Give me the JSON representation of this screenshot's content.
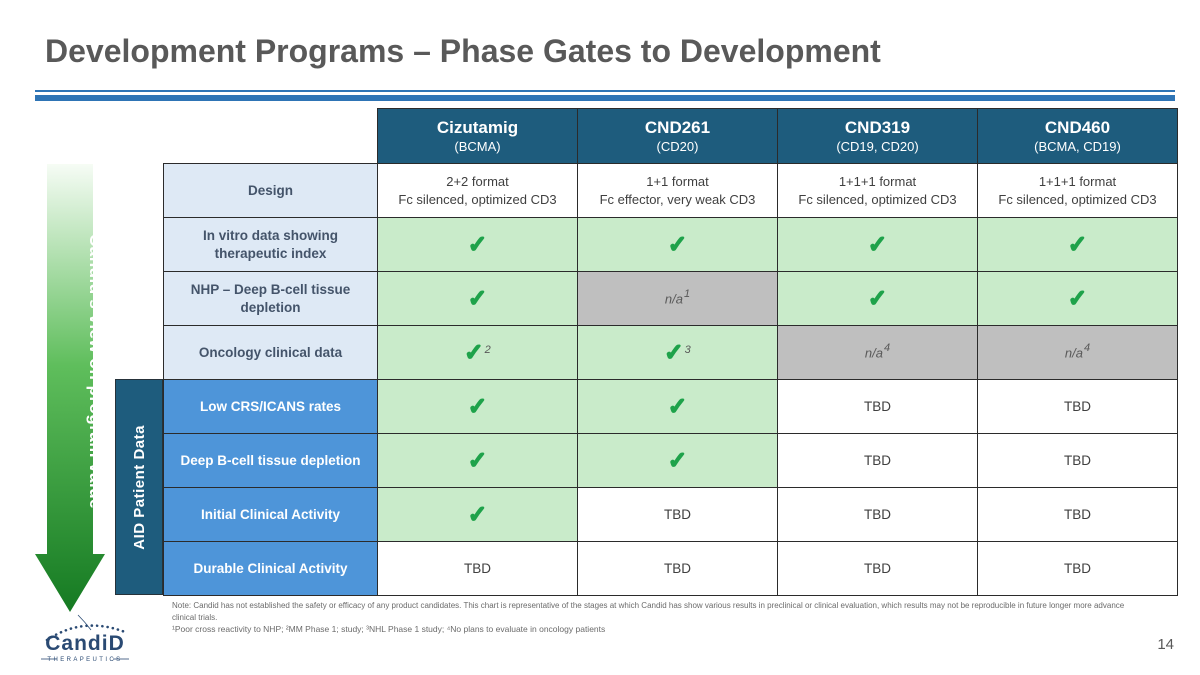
{
  "slide": {
    "title": "Development Programs – Phase Gates to Development",
    "page_number": "14"
  },
  "colors": {
    "accent_rule_blue": "#2E74B5",
    "header_teal": "#1E5C7D",
    "row_label_blue": "#4E95D9",
    "row_label_light_blue": "#DEE9F5",
    "green_cell": "#C9EBCA",
    "gray_cell": "#BFBFBF",
    "check_green": "#1EA24A",
    "arrow_gradient_top": "#F4FBF3",
    "arrow_gradient_bottom": "#157A22",
    "logo_navy": "#2A4A73"
  },
  "left_arrow": {
    "label": "Candid’s view on program value"
  },
  "aid_bar": {
    "label": "AID Patient Data"
  },
  "table": {
    "check_glyph": "✓",
    "na_label": "n/a",
    "tbd_label": "TBD",
    "columns": [
      {
        "name": "Cizutamig",
        "sub": "(BCMA)"
      },
      {
        "name": "CND261",
        "sub": "(CD20)"
      },
      {
        "name": "CND319",
        "sub": "(CD19, CD20)"
      },
      {
        "name": "CND460",
        "sub": "(BCMA, CD19)"
      }
    ],
    "rows": [
      {
        "label": "Design",
        "label_style": "light",
        "cells": [
          {
            "type": "text2",
            "line1": "2+2 format",
            "line2": "Fc silenced, optimized CD3"
          },
          {
            "type": "text2",
            "line1": "1+1 format",
            "line2": "Fc effector, very weak CD3"
          },
          {
            "type": "text2",
            "line1": "1+1+1 format",
            "line2": "Fc silenced, optimized CD3"
          },
          {
            "type": "text2",
            "line1": "1+1+1 format",
            "line2": "Fc silenced, optimized CD3"
          }
        ]
      },
      {
        "label": "In vitro data showing therapeutic index",
        "label_style": "light",
        "cells": [
          {
            "type": "check"
          },
          {
            "type": "check"
          },
          {
            "type": "check"
          },
          {
            "type": "check"
          }
        ]
      },
      {
        "label": "NHP – Deep B-cell tissue depletion",
        "label_style": "light",
        "cells": [
          {
            "type": "check"
          },
          {
            "type": "na",
            "sup": "1"
          },
          {
            "type": "check"
          },
          {
            "type": "check"
          }
        ]
      },
      {
        "label": "Oncology clinical data",
        "label_style": "light",
        "cells": [
          {
            "type": "check",
            "sup": "2"
          },
          {
            "type": "check",
            "sup": "3"
          },
          {
            "type": "na",
            "sup": "4"
          },
          {
            "type": "na",
            "sup": "4"
          }
        ]
      },
      {
        "label": "Low CRS/ICANS rates",
        "label_style": "blue",
        "cells": [
          {
            "type": "check"
          },
          {
            "type": "check"
          },
          {
            "type": "tbd"
          },
          {
            "type": "tbd"
          }
        ]
      },
      {
        "label": "Deep B-cell tissue depletion",
        "label_style": "blue",
        "cells": [
          {
            "type": "check"
          },
          {
            "type": "check"
          },
          {
            "type": "tbd"
          },
          {
            "type": "tbd"
          }
        ]
      },
      {
        "label": "Initial Clinical Activity",
        "label_style": "blue",
        "cells": [
          {
            "type": "check"
          },
          {
            "type": "tbd"
          },
          {
            "type": "tbd"
          },
          {
            "type": "tbd"
          }
        ]
      },
      {
        "label": "Durable Clinical Activity",
        "label_style": "blue",
        "cells": [
          {
            "type": "tbd"
          },
          {
            "type": "tbd"
          },
          {
            "type": "tbd"
          },
          {
            "type": "tbd"
          }
        ]
      }
    ]
  },
  "footer": {
    "note": "Note: Candid has not established the safety or efficacy of any product candidates. This chart is representative of the stages at which Candid has show various results in preclinical or clinical evaluation, which results may not be reproducible in future longer more advance clinical trials.",
    "footnotes": "¹Poor cross reactivity to NHP;  ²MM Phase 1;  study; ³NHL Phase 1 study; ⁴No plans to evaluate in oncology patients"
  },
  "logo": {
    "name": "CandiD",
    "subtitle": "THERAPEUTICS"
  }
}
